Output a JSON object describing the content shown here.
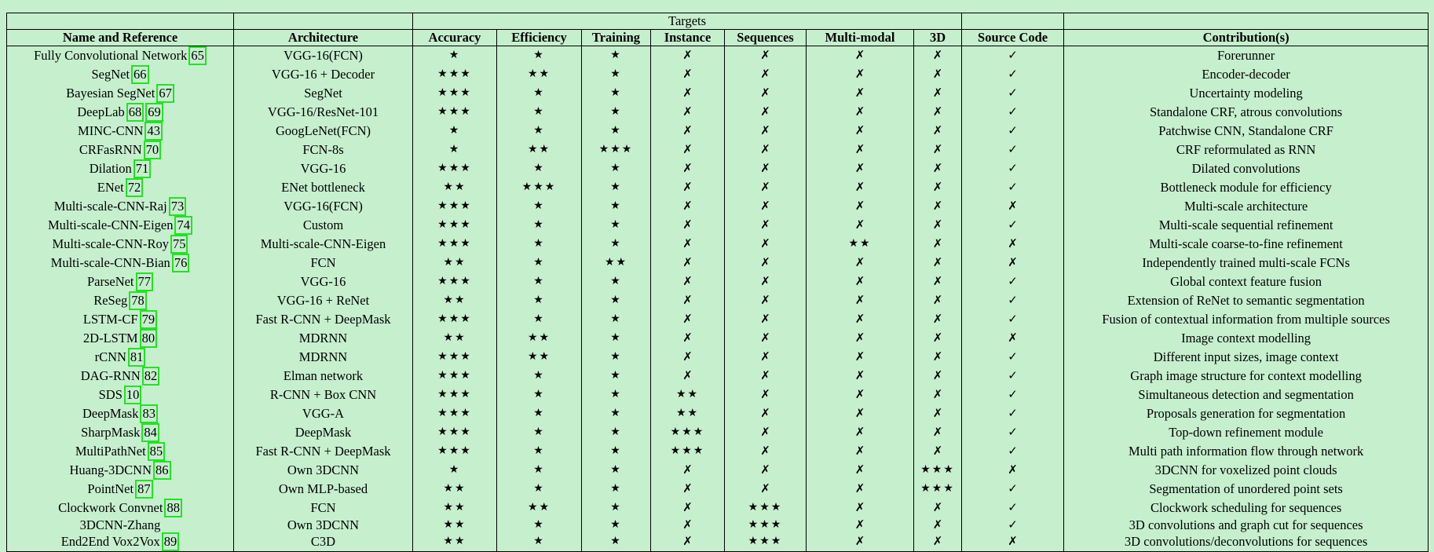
{
  "table": {
    "group_header": "Targets",
    "columns": [
      "Name and Reference",
      "Architecture",
      "Accuracy",
      "Efficiency",
      "Training",
      "Instance",
      "Sequences",
      "Multi-modal",
      "3D",
      "Source Code",
      "Contribution(s)"
    ],
    "rows": [
      {
        "name": "Fully Convolutional Network",
        "ref": "65",
        "arch": "VGG-16(FCN)",
        "acc": "★",
        "eff": "★",
        "train": "★",
        "inst": "✗",
        "seq": "✗",
        "mm": "✗",
        "d3": "✗",
        "code": "✓",
        "contrib": "Forerunner"
      },
      {
        "name": "SegNet",
        "ref": "66",
        "arch": "VGG-16 + Decoder",
        "acc": "★★★",
        "eff": "★★",
        "train": "★",
        "inst": "✗",
        "seq": "✗",
        "mm": "✗",
        "d3": "✗",
        "code": "✓",
        "contrib": "Encoder-decoder"
      },
      {
        "name": "Bayesian SegNet",
        "ref": "67",
        "arch": "SegNet",
        "acc": "★★★",
        "eff": "★",
        "train": "★",
        "inst": "✗",
        "seq": "✗",
        "mm": "✗",
        "d3": "✗",
        "code": "✓",
        "contrib": "Uncertainty modeling"
      },
      {
        "name": "DeepLab",
        "ref": "68",
        "ref2": "69",
        "arch": "VGG-16/ResNet-101",
        "acc": "★★★",
        "eff": "★",
        "train": "★",
        "inst": "✗",
        "seq": "✗",
        "mm": "✗",
        "d3": "✗",
        "code": "✓",
        "contrib": "Standalone CRF, atrous convolutions"
      },
      {
        "name": "MINC-CNN",
        "ref": "43",
        "arch": "GoogLeNet(FCN)",
        "acc": "★",
        "eff": "★",
        "train": "★",
        "inst": "✗",
        "seq": "✗",
        "mm": "✗",
        "d3": "✗",
        "code": "✓",
        "contrib": "Patchwise CNN, Standalone CRF"
      },
      {
        "name": "CRFasRNN",
        "ref": "70",
        "arch": "FCN-8s",
        "acc": "★",
        "eff": "★★",
        "train": "★★★",
        "inst": "✗",
        "seq": "✗",
        "mm": "✗",
        "d3": "✗",
        "code": "✓",
        "contrib": "CRF reformulated as RNN"
      },
      {
        "name": "Dilation",
        "ref": "71",
        "arch": "VGG-16",
        "acc": "★★★",
        "eff": "★",
        "train": "★",
        "inst": "✗",
        "seq": "✗",
        "mm": "✗",
        "d3": "✗",
        "code": "✓",
        "contrib": "Dilated convolutions"
      },
      {
        "name": "ENet",
        "ref": "72",
        "arch": "ENet bottleneck",
        "acc": "★★",
        "eff": "★★★",
        "train": "★",
        "inst": "✗",
        "seq": "✗",
        "mm": "✗",
        "d3": "✗",
        "code": "✓",
        "contrib": "Bottleneck module for efficiency"
      },
      {
        "name": "Multi-scale-CNN-Raj",
        "ref": "73",
        "arch": "VGG-16(FCN)",
        "acc": "★★★",
        "eff": "★",
        "train": "★",
        "inst": "✗",
        "seq": "✗",
        "mm": "✗",
        "d3": "✗",
        "code": "✗",
        "contrib": "Multi-scale architecture"
      },
      {
        "name": "Multi-scale-CNN-Eigen",
        "ref": "74",
        "arch": "Custom",
        "acc": "★★★",
        "eff": "★",
        "train": "★",
        "inst": "✗",
        "seq": "✗",
        "mm": "✗",
        "d3": "✗",
        "code": "✓",
        "contrib": "Multi-scale sequential refinement"
      },
      {
        "name": "Multi-scale-CNN-Roy",
        "ref": "75",
        "arch": "Multi-scale-CNN-Eigen",
        "acc": "★★★",
        "eff": "★",
        "train": "★",
        "inst": "✗",
        "seq": "✗",
        "mm": "★★",
        "d3": "✗",
        "code": "✗",
        "contrib": "Multi-scale coarse-to-fine refinement"
      },
      {
        "name": "Multi-scale-CNN-Bian",
        "ref": "76",
        "arch": "FCN",
        "acc": "★★",
        "eff": "★",
        "train": "★★",
        "inst": "✗",
        "seq": "✗",
        "mm": "✗",
        "d3": "✗",
        "code": "✗",
        "contrib": "Independently trained multi-scale FCNs"
      },
      {
        "name": "ParseNet",
        "ref": "77",
        "arch": "VGG-16",
        "acc": "★★★",
        "eff": "★",
        "train": "★",
        "inst": "✗",
        "seq": "✗",
        "mm": "✗",
        "d3": "✗",
        "code": "✓",
        "contrib": "Global context feature fusion"
      },
      {
        "name": "ReSeg",
        "ref": "78",
        "arch": "VGG-16 + ReNet",
        "acc": "★★",
        "eff": "★",
        "train": "★",
        "inst": "✗",
        "seq": "✗",
        "mm": "✗",
        "d3": "✗",
        "code": "✓",
        "contrib": "Extension of ReNet to semantic segmentation"
      },
      {
        "name": "LSTM-CF",
        "ref": "79",
        "arch": "Fast R-CNN + DeepMask",
        "acc": "★★★",
        "eff": "★",
        "train": "★",
        "inst": "✗",
        "seq": "✗",
        "mm": "✗",
        "d3": "✗",
        "code": "✓",
        "contrib": "Fusion of contextual information from multiple sources"
      },
      {
        "name": "2D-LSTM",
        "ref": "80",
        "arch": "MDRNN",
        "acc": "★★",
        "eff": "★★",
        "train": "★",
        "inst": "✗",
        "seq": "✗",
        "mm": "✗",
        "d3": "✗",
        "code": "✗",
        "contrib": "Image context modelling"
      },
      {
        "name": "rCNN",
        "ref": "81",
        "arch": "MDRNN",
        "acc": "★★★",
        "eff": "★★",
        "train": "★",
        "inst": "✗",
        "seq": "✗",
        "mm": "✗",
        "d3": "✗",
        "code": "✓",
        "contrib": "Different input sizes, image context"
      },
      {
        "name": "DAG-RNN",
        "ref": "82",
        "arch": "Elman network",
        "acc": "★★★",
        "eff": "★",
        "train": "★",
        "inst": "✗",
        "seq": "✗",
        "mm": "✗",
        "d3": "✗",
        "code": "✓",
        "contrib": "Graph image structure for context modelling"
      },
      {
        "name": "SDS",
        "ref": "10",
        "arch": "R-CNN + Box CNN",
        "acc": "★★★",
        "eff": "★",
        "train": "★",
        "inst": "★★",
        "seq": "✗",
        "mm": "✗",
        "d3": "✗",
        "code": "✓",
        "contrib": "Simultaneous detection and segmentation"
      },
      {
        "name": "DeepMask",
        "ref": "83",
        "arch": "VGG-A",
        "acc": "★★★",
        "eff": "★",
        "train": "★",
        "inst": "★★",
        "seq": "✗",
        "mm": "✗",
        "d3": "✗",
        "code": "✓",
        "contrib": "Proposals generation for segmentation"
      },
      {
        "name": "SharpMask",
        "ref": "84",
        "arch": "DeepMask",
        "acc": "★★★",
        "eff": "★",
        "train": "★",
        "inst": "★★★",
        "seq": "✗",
        "mm": "✗",
        "d3": "✗",
        "code": "✓",
        "contrib": "Top-down refinement module"
      },
      {
        "name": "MultiPathNet",
        "ref": "85",
        "arch": "Fast R-CNN + DeepMask",
        "acc": "★★★",
        "eff": "★",
        "train": "★",
        "inst": "★★★",
        "seq": "✗",
        "mm": "✗",
        "d3": "✗",
        "code": "✓",
        "contrib": "Multi path information flow through network"
      },
      {
        "name": "Huang-3DCNN",
        "ref": "86",
        "arch": "Own 3DCNN",
        "acc": "★",
        "eff": "★",
        "train": "★",
        "inst": "✗",
        "seq": "✗",
        "mm": "✗",
        "d3": "★★★",
        "code": "✗",
        "contrib": "3DCNN for voxelized point clouds"
      },
      {
        "name": "PointNet",
        "ref": "87",
        "arch": "Own MLP-based",
        "acc": "★★",
        "eff": "★",
        "train": "★",
        "inst": "✗",
        "seq": "✗",
        "mm": "✗",
        "d3": "★★★",
        "code": "✓",
        "contrib": "Segmentation of unordered point sets"
      },
      {
        "name": "Clockwork Convnet",
        "ref": "88",
        "arch": "FCN",
        "acc": "★★",
        "eff": "★★",
        "train": "★",
        "inst": "✗",
        "seq": "★★★",
        "mm": "✗",
        "d3": "✗",
        "code": "✓",
        "contrib": "Clockwork scheduling for sequences"
      },
      {
        "name": "3DCNN-Zhang",
        "ref": "",
        "arch": "Own 3DCNN",
        "acc": "★★",
        "eff": "★",
        "train": "★",
        "inst": "✗",
        "seq": "★★★",
        "mm": "✗",
        "d3": "✗",
        "code": "✓",
        "contrib": "3D convolutions and graph cut for sequences"
      },
      {
        "name": "End2End Vox2Vox",
        "ref": "89",
        "arch": "C3D",
        "acc": "★★",
        "eff": "★",
        "train": "★",
        "inst": "✗",
        "seq": "★★★",
        "mm": "✗",
        "d3": "✗",
        "code": "✗",
        "contrib": "3D convolutions/deconvolutions for sequences"
      }
    ]
  }
}
